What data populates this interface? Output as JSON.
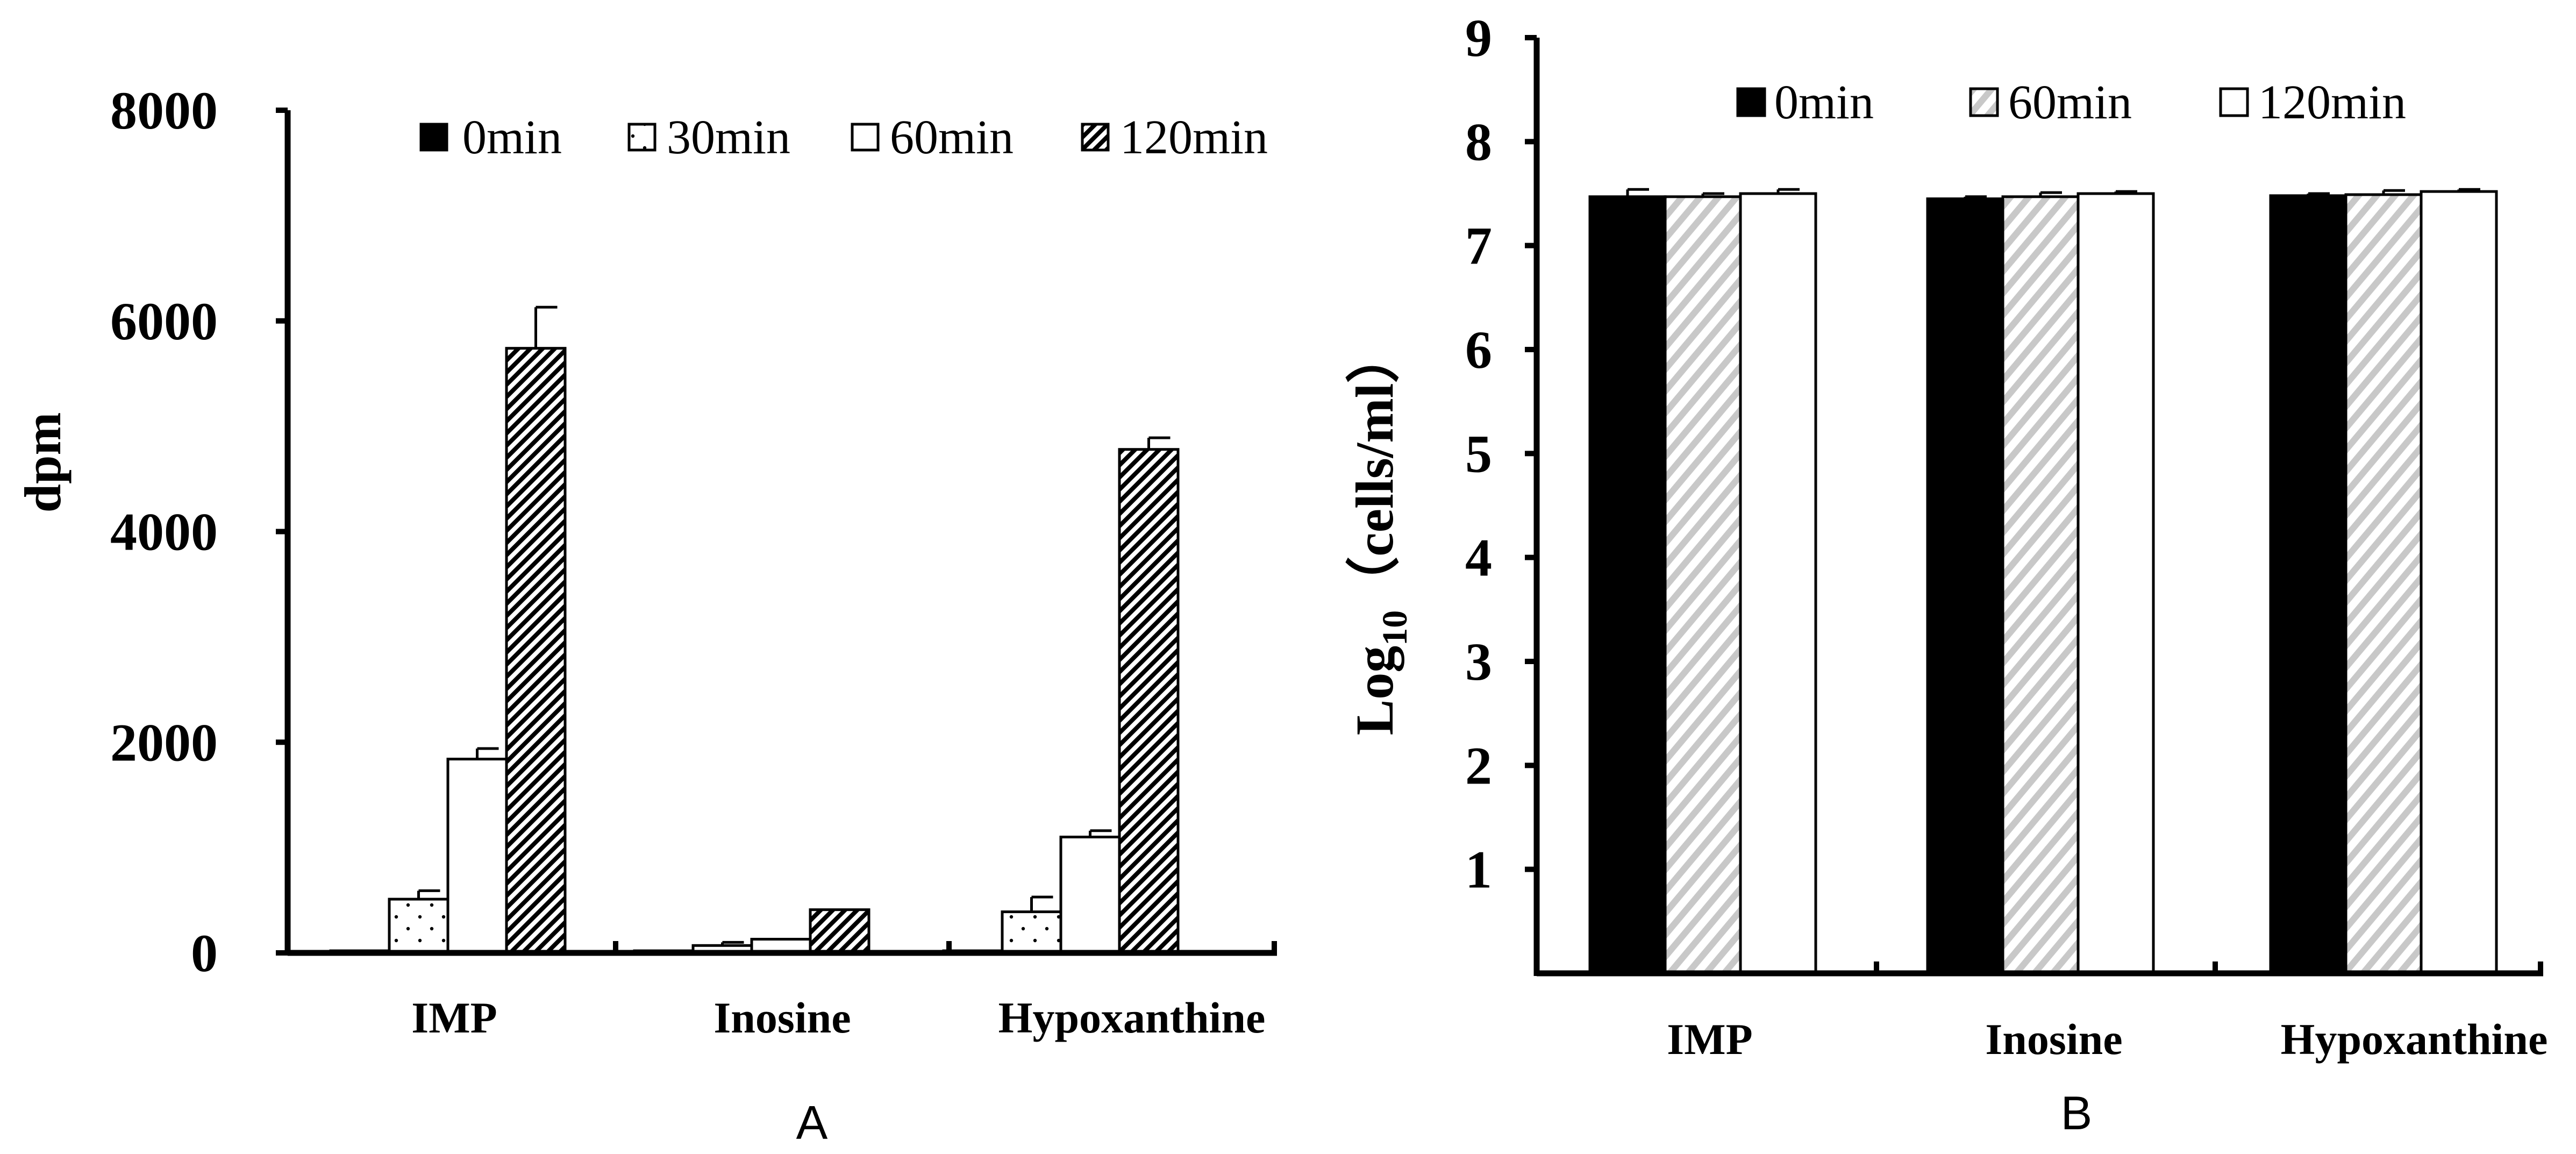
{
  "chart_data": [
    {
      "type": "bar",
      "panel_label": "A",
      "title": "",
      "xlabel": "",
      "ylabel": "dpm",
      "ylim": [
        0,
        8000
      ],
      "yticks": [
        0,
        2000,
        4000,
        6000,
        8000
      ],
      "ytick_labels": [
        "0",
        "2000",
        "4000",
        "6000",
        "8000"
      ],
      "categories": [
        "IMP",
        "Inosine",
        "Hypoxanthine"
      ],
      "legend_position": "top-right",
      "series": [
        {
          "name": "0min",
          "pattern": "solid-black",
          "values": [
            20,
            20,
            20
          ],
          "errors": [
            0,
            0,
            0
          ]
        },
        {
          "name": "30min",
          "pattern": "dots",
          "values": [
            510,
            70,
            390
          ],
          "errors": [
            80,
            30,
            140
          ]
        },
        {
          "name": "60min",
          "pattern": "white",
          "values": [
            1840,
            130,
            1100
          ],
          "errors": [
            100,
            0,
            60
          ]
        },
        {
          "name": "120min",
          "pattern": "dense-hatch",
          "values": [
            5740,
            410,
            4780
          ],
          "errors": [
            390,
            0,
            110
          ]
        }
      ]
    },
    {
      "type": "bar",
      "panel_label": "B",
      "title": "",
      "xlabel": "",
      "ylabel": "Log",
      "ylabel_subscript": "10",
      "ylabel_unit": "（cells/ml）",
      "ylim": [
        0,
        9
      ],
      "yticks": [
        1,
        2,
        3,
        4,
        5,
        6,
        7,
        8,
        9
      ],
      "ytick_labels": [
        "1",
        "2",
        "3",
        "4",
        "5",
        "6",
        "7",
        "8",
        "9"
      ],
      "categories": [
        "IMP",
        "Inosine",
        "Hypoxanthine"
      ],
      "legend_position": "top-right",
      "series": [
        {
          "name": "0min",
          "pattern": "solid-black",
          "values": [
            7.47,
            7.45,
            7.48
          ],
          "errors": [
            0.07,
            0.02,
            0.02
          ]
        },
        {
          "name": "60min",
          "pattern": "light-diagonal",
          "values": [
            7.47,
            7.47,
            7.49
          ],
          "errors": [
            0.03,
            0.04,
            0.04
          ]
        },
        {
          "name": "120min",
          "pattern": "white",
          "values": [
            7.5,
            7.5,
            7.52
          ],
          "errors": [
            0.04,
            0.02,
            0.02
          ]
        }
      ]
    }
  ]
}
